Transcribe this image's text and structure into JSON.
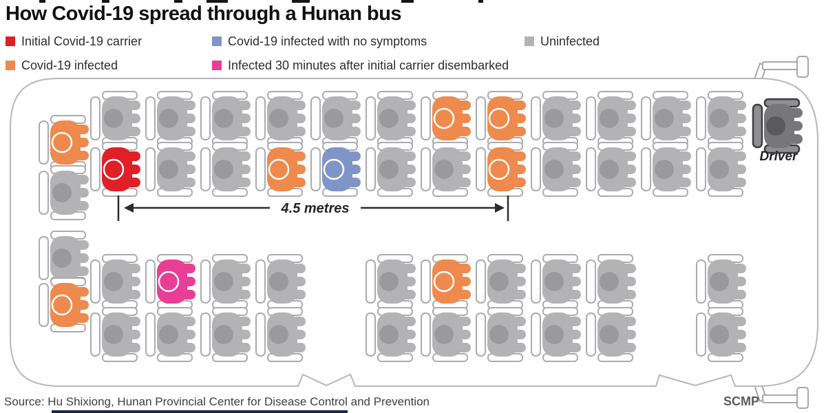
{
  "title": "How Covid-19 spread through a Hunan bus",
  "legend": {
    "items": [
      {
        "label": "Initial Covid-19 carrier",
        "color": "#e01f26"
      },
      {
        "label": "Covid-19 infected",
        "color": "#ee8a4d"
      },
      {
        "label": "Covid-19 infected with no symptoms",
        "color": "#8095c7"
      },
      {
        "label": "Infected 30 minutes after initial carrier disembarked",
        "color": "#e93e96"
      },
      {
        "label": "Uninfected",
        "color": "#b3b3b5"
      }
    ]
  },
  "seat_colors": {
    "uninfected": {
      "body": "#b3b3b5",
      "head": "#9a9a9c",
      "ring": false
    },
    "initial": {
      "body": "#e01f26",
      "head": "#e01f26",
      "ring": true
    },
    "infected": {
      "body": "#ee8a4d",
      "head": "#ee8a4d",
      "ring": true
    },
    "asymptomatic": {
      "body": "#8095c7",
      "head": "#8095c7",
      "ring": true
    },
    "late": {
      "body": "#e93e96",
      "head": "#e93e96",
      "ring": true
    },
    "driver": {
      "body": "#77777a",
      "head": "#5a5a5d",
      "ring": false,
      "frame": "#8f8f92",
      "frameStroke": "#3e3e41"
    }
  },
  "bus": {
    "driver_label": "Driver",
    "distance_label": "4.5 metres",
    "seat_rows": {
      "upper_window": [
        "uninfected",
        "uninfected",
        "uninfected",
        "uninfected",
        "uninfected",
        "uninfected",
        "infected",
        "infected",
        "uninfected",
        "uninfected",
        "uninfected",
        "uninfected"
      ],
      "upper_aisle": [
        "initial",
        "uninfected",
        "uninfected",
        "infected",
        "asymptomatic",
        "uninfected",
        "uninfected",
        "infected",
        "uninfected",
        "uninfected",
        "uninfected",
        "uninfected"
      ],
      "lower_aisle": [
        "uninfected",
        "late",
        "uninfected",
        "uninfected",
        null,
        "uninfected",
        "infected",
        "uninfected",
        "uninfected",
        "uninfected",
        null,
        "uninfected"
      ],
      "lower_window": [
        "uninfected",
        "uninfected",
        "uninfected",
        "uninfected",
        null,
        "uninfected",
        "uninfected",
        "uninfected",
        "uninfected",
        "uninfected",
        null,
        "uninfected"
      ],
      "back_bench_upper": [
        "infected",
        "uninfected"
      ],
      "back_bench_lower": [
        "uninfected",
        "infected"
      ]
    }
  },
  "footer": {
    "source": "Source: Hu Shixiong, Hunan Provincial Center for Disease Control and Prevention",
    "credit": "SCMP"
  }
}
